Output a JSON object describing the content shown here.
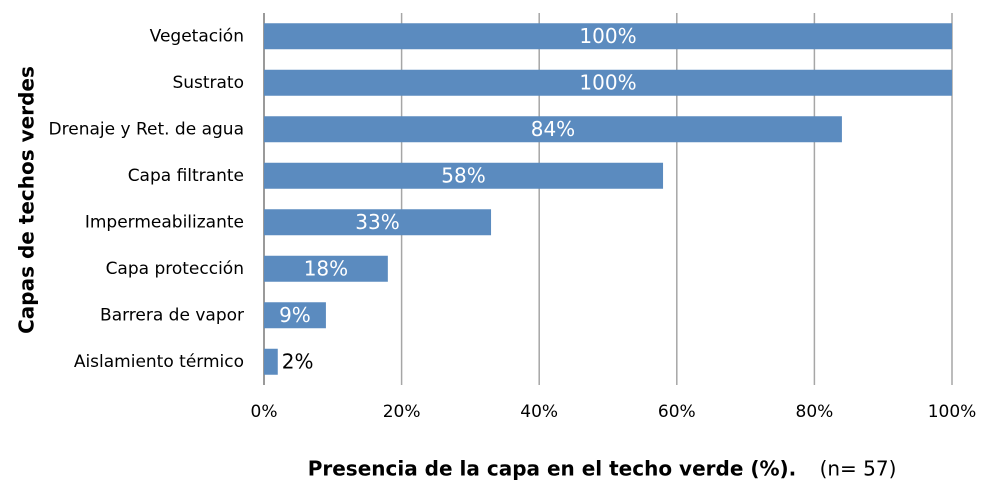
{
  "chart_data": {
    "type": "barh",
    "ylabel": "Capas de techos verdes",
    "xlabel": "Presencia  de la capa en el techo verde (%).",
    "annotation": "(n= 57)",
    "categories": [
      "Vegetación",
      "Sustrato",
      "Drenaje y Ret. de agua",
      "Capa filtrante",
      "Impermeabilizante",
      "Capa protección",
      "Barrera de vapor",
      "Aislamiento térmico"
    ],
    "values": [
      100,
      100,
      84,
      58,
      33,
      18,
      9,
      2
    ],
    "value_labels": [
      "100%",
      "100%",
      "84%",
      "58%",
      "33%",
      "18%",
      "9%",
      "2%"
    ],
    "color": "#5b8bbf",
    "xlim": [
      0,
      100
    ],
    "xticks": [
      {
        "value": 0,
        "label": "0%"
      },
      {
        "value": 20,
        "label": "20%"
      },
      {
        "value": 40,
        "label": "40%"
      },
      {
        "value": 60,
        "label": "60%"
      },
      {
        "value": 80,
        "label": "80%"
      },
      {
        "value": 100,
        "label": "100%"
      }
    ],
    "grid": true
  }
}
